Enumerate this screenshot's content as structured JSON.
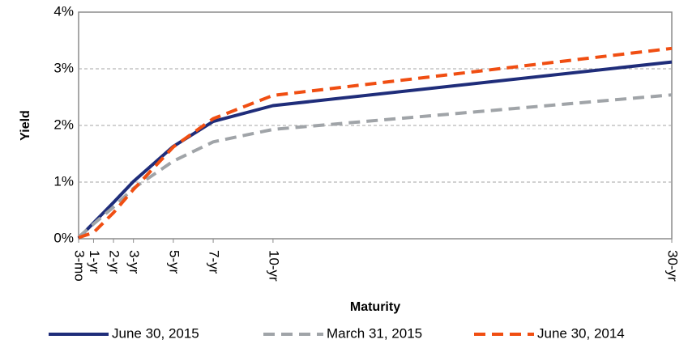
{
  "chart_data": {
    "type": "line",
    "x_label": "Maturity",
    "y_label": "Yield",
    "x": [
      0.25,
      1,
      2,
      3,
      5,
      7,
      10,
      30
    ],
    "xlim": [
      0.25,
      30
    ],
    "xticks": [
      {
        "value": 0.25,
        "label": "3-mo"
      },
      {
        "value": 1,
        "label": "1-yr"
      },
      {
        "value": 2,
        "label": "2-yr"
      },
      {
        "value": 3,
        "label": "3-yr"
      },
      {
        "value": 5,
        "label": "5-yr"
      },
      {
        "value": 7,
        "label": "7-yr"
      },
      {
        "value": 10,
        "label": "10-yr"
      },
      {
        "value": 30,
        "label": "30-yr"
      }
    ],
    "ylim": [
      0,
      4
    ],
    "yticks": [
      {
        "value": 0,
        "label": "0%"
      },
      {
        "value": 1,
        "label": "1%"
      },
      {
        "value": 2,
        "label": "2%"
      },
      {
        "value": 3,
        "label": "3%"
      },
      {
        "value": 4,
        "label": "4%"
      }
    ],
    "grid": true,
    "legend": "bottom",
    "series": [
      {
        "name": "June 30, 2015",
        "color": "#1f2d7a",
        "dash": "solid",
        "values": [
          0.01,
          0.28,
          0.64,
          1.01,
          1.63,
          2.07,
          2.35,
          3.12
        ]
      },
      {
        "name": "March 31, 2015",
        "color": "#a0a4a8",
        "dash": "dashed",
        "values": [
          0.03,
          0.26,
          0.56,
          0.89,
          1.37,
          1.71,
          1.93,
          2.54
        ]
      },
      {
        "name": "June 30, 2014",
        "color": "#f04e12",
        "dash": "dashed",
        "values": [
          0.02,
          0.11,
          0.46,
          0.87,
          1.62,
          2.12,
          2.53,
          3.36
        ]
      }
    ]
  }
}
